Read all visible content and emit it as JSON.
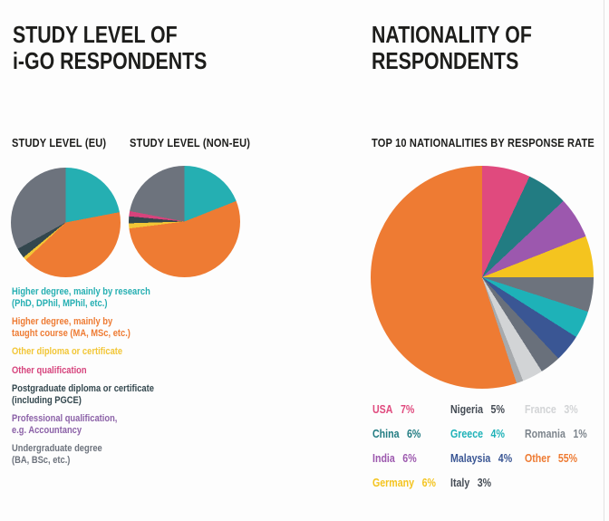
{
  "colors": {
    "black": "#1d1d1b",
    "teal": "#25afb2",
    "orange": "#ee7b33",
    "yellow": "#f2c636",
    "magenta": "#d6437c",
    "dark": "#33474e",
    "purple": "#8b61a7",
    "gray": "#6d737d",
    "usa_pink": "#e04a7e",
    "china_teal": "#227c82",
    "india_purple": "#9c58ae",
    "germany_yellow": "#f4c41f",
    "nigeria_gray": "#6d737d",
    "greece_teal": "#1eb2b8",
    "malaysia_navy": "#3a5694",
    "italy_gray": "#69707b",
    "france_gray": "#d2d4d6",
    "romania_gray": "#a7aaad",
    "charcoal": "#444b54",
    "romania_text": "#7d858d"
  },
  "study_section": {
    "title_line1": "STUDY LEVEL OF",
    "title_line2": "i-GO RESPONDENTS",
    "eu_chart_title": "STUDY LEVEL (EU)",
    "non_eu_chart_title": "STUDY LEVEL (NON-EU)",
    "legend": [
      {
        "lines": [
          "Higher degree, mainly by research",
          "(PhD, DPhil, MPhil, etc.)"
        ],
        "color": "teal"
      },
      {
        "lines": [
          "Higher degree, mainly by",
          "taught course (MA, MSc, etc.)"
        ],
        "color": "orange"
      },
      {
        "lines": [
          "Other diploma or certificate"
        ],
        "color": "yellow"
      },
      {
        "lines": [
          "Other qualification"
        ],
        "color": "magenta"
      },
      {
        "lines": [
          "Postgraduate diploma or certificate",
          "(including PGCE)"
        ],
        "color": "dark"
      },
      {
        "lines": [
          "Professional qualification,",
          "e.g. Accountancy"
        ],
        "color": "purple"
      },
      {
        "lines": [
          "Undergraduate degree",
          "(BA, BSc, etc.)"
        ],
        "color": "gray"
      }
    ]
  },
  "nationality_section": {
    "title_line1": "NATIONALITY OF",
    "title_line2": "RESPONDENTS",
    "chart_title": "TOP 10 NATIONALITIES BY RESPONSE RATE",
    "legend_columns": [
      [
        {
          "label": "USA",
          "value": "7%",
          "color": "usa_pink"
        },
        {
          "label": "China",
          "value": "6%",
          "color": "china_teal"
        },
        {
          "label": "India",
          "value": "6%",
          "color": "india_purple"
        },
        {
          "label": "Germany",
          "value": "6%",
          "color": "germany_yellow"
        }
      ],
      [
        {
          "label": "Nigeria",
          "value": "5%",
          "color": "charcoal"
        },
        {
          "label": "Greece",
          "value": "4%",
          "color": "greece_teal"
        },
        {
          "label": "Malaysia",
          "value": "4%",
          "color": "malaysia_navy"
        },
        {
          "label": "Italy",
          "value": "3%",
          "color": "charcoal"
        }
      ],
      [
        {
          "label": "France",
          "value": "3%",
          "color": "france_gray"
        },
        {
          "label": "Romania",
          "value": "1%",
          "color": "romania_text"
        },
        {
          "label": "Other",
          "value": "55%",
          "color": "orange"
        }
      ]
    ]
  },
  "chart_data": [
    {
      "type": "pie",
      "title": "STUDY LEVEL (EU)",
      "start_angle_deg": 0,
      "direction": "clockwise",
      "unit": "% (estimated from slice angles, not labeled in image)",
      "labels": [
        "Higher degree, mainly by research (PhD, DPhil, MPhil, etc.)",
        "Higher degree, mainly by taught course (MA, MSc, etc.)",
        "Other diploma or certificate",
        "Postgraduate diploma or certificate (including PGCE)",
        "Undergraduate degree (BA, BSc, etc.)"
      ],
      "values": [
        22,
        41,
        1,
        3,
        33
      ],
      "colors": [
        "teal",
        "orange",
        "yellow",
        "dark",
        "gray"
      ],
      "legend_position": "below-left"
    },
    {
      "type": "pie",
      "title": "STUDY LEVEL (NON-EU)",
      "start_angle_deg": 0,
      "direction": "clockwise",
      "unit": "% (estimated from slice angles, not labeled in image)",
      "labels": [
        "Higher degree, mainly by research (PhD, DPhil, MPhil, etc.)",
        "Higher degree, mainly by taught course (MA, MSc, etc.)",
        "Other diploma or certificate",
        "Postgraduate diploma or certificate (including PGCE)",
        "Other qualification",
        "Undergraduate degree (BA, BSc, etc.)"
      ],
      "values": [
        19,
        54,
        1.5,
        2,
        1.5,
        22
      ],
      "colors": [
        "teal",
        "orange",
        "yellow",
        "dark",
        "magenta",
        "gray"
      ],
      "legend_position": "below-left"
    },
    {
      "type": "pie",
      "title": "TOP 10 NATIONALITIES BY RESPONSE RATE",
      "start_angle_deg": 0,
      "direction": "clockwise",
      "unit": "%",
      "labels": [
        "USA",
        "China",
        "India",
        "Germany",
        "Nigeria",
        "Greece",
        "Malaysia",
        "Italy",
        "France",
        "Romania",
        "Other"
      ],
      "values": [
        7,
        6,
        6,
        6,
        5,
        4,
        4,
        3,
        3,
        1,
        55
      ],
      "colors": [
        "usa_pink",
        "china_teal",
        "india_purple",
        "germany_yellow",
        "nigeria_gray",
        "greece_teal",
        "malaysia_navy",
        "italy_gray",
        "france_gray",
        "romania_gray",
        "orange"
      ],
      "legend_position": "below"
    }
  ]
}
